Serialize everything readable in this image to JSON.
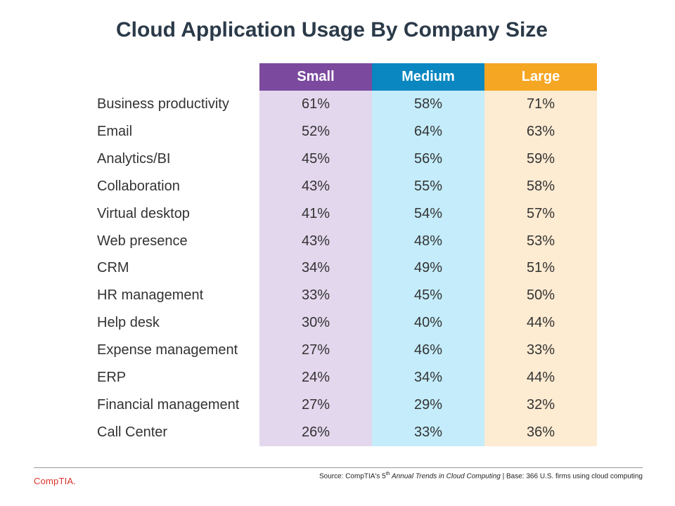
{
  "title": "Cloud Application Usage By Company Size",
  "colors": {
    "small": "#7b4a9e",
    "small_bg": "#e3d7ed",
    "medium": "#0a87c1",
    "medium_bg": "#c4ecfb",
    "large": "#f5a623",
    "large_bg": "#fdebd2"
  },
  "chart_data": {
    "type": "table",
    "title": "Cloud Application Usage By Company Size",
    "columns": [
      "Small",
      "Medium",
      "Large"
    ],
    "rows": [
      {
        "label": "Business productivity",
        "values": [
          "61%",
          "58%",
          "71%"
        ]
      },
      {
        "label": "Email",
        "values": [
          "52%",
          "64%",
          "63%"
        ]
      },
      {
        "label": "Analytics/BI",
        "values": [
          "45%",
          "56%",
          "59%"
        ]
      },
      {
        "label": "Collaboration",
        "values": [
          "43%",
          "55%",
          "58%"
        ]
      },
      {
        "label": "Virtual desktop",
        "values": [
          "41%",
          "54%",
          "57%"
        ]
      },
      {
        "label": "Web presence",
        "values": [
          "43%",
          "48%",
          "53%"
        ]
      },
      {
        "label": "CRM",
        "values": [
          "34%",
          "49%",
          "51%"
        ]
      },
      {
        "label": "HR management",
        "values": [
          "33%",
          "45%",
          "50%"
        ]
      },
      {
        "label": "Help desk",
        "values": [
          "30%",
          "40%",
          "44%"
        ]
      },
      {
        "label": "Expense management",
        "values": [
          "27%",
          "46%",
          "33%"
        ]
      },
      {
        "label": "ERP",
        "values": [
          "24%",
          "34%",
          "44%"
        ]
      },
      {
        "label": "Financial management",
        "values": [
          "27%",
          "29%",
          "32%"
        ]
      },
      {
        "label": "Call Center",
        "values": [
          "26%",
          "33%",
          "36%"
        ]
      }
    ]
  },
  "footer": {
    "logo": "CompTIA.",
    "source_prefix": "Source: CompTIA's 5",
    "source_sup": "th",
    "source_italic": " Annual Trends in Cloud Computing",
    "source_suffix": " | Base: 366 U.S. firms using cloud computing"
  }
}
